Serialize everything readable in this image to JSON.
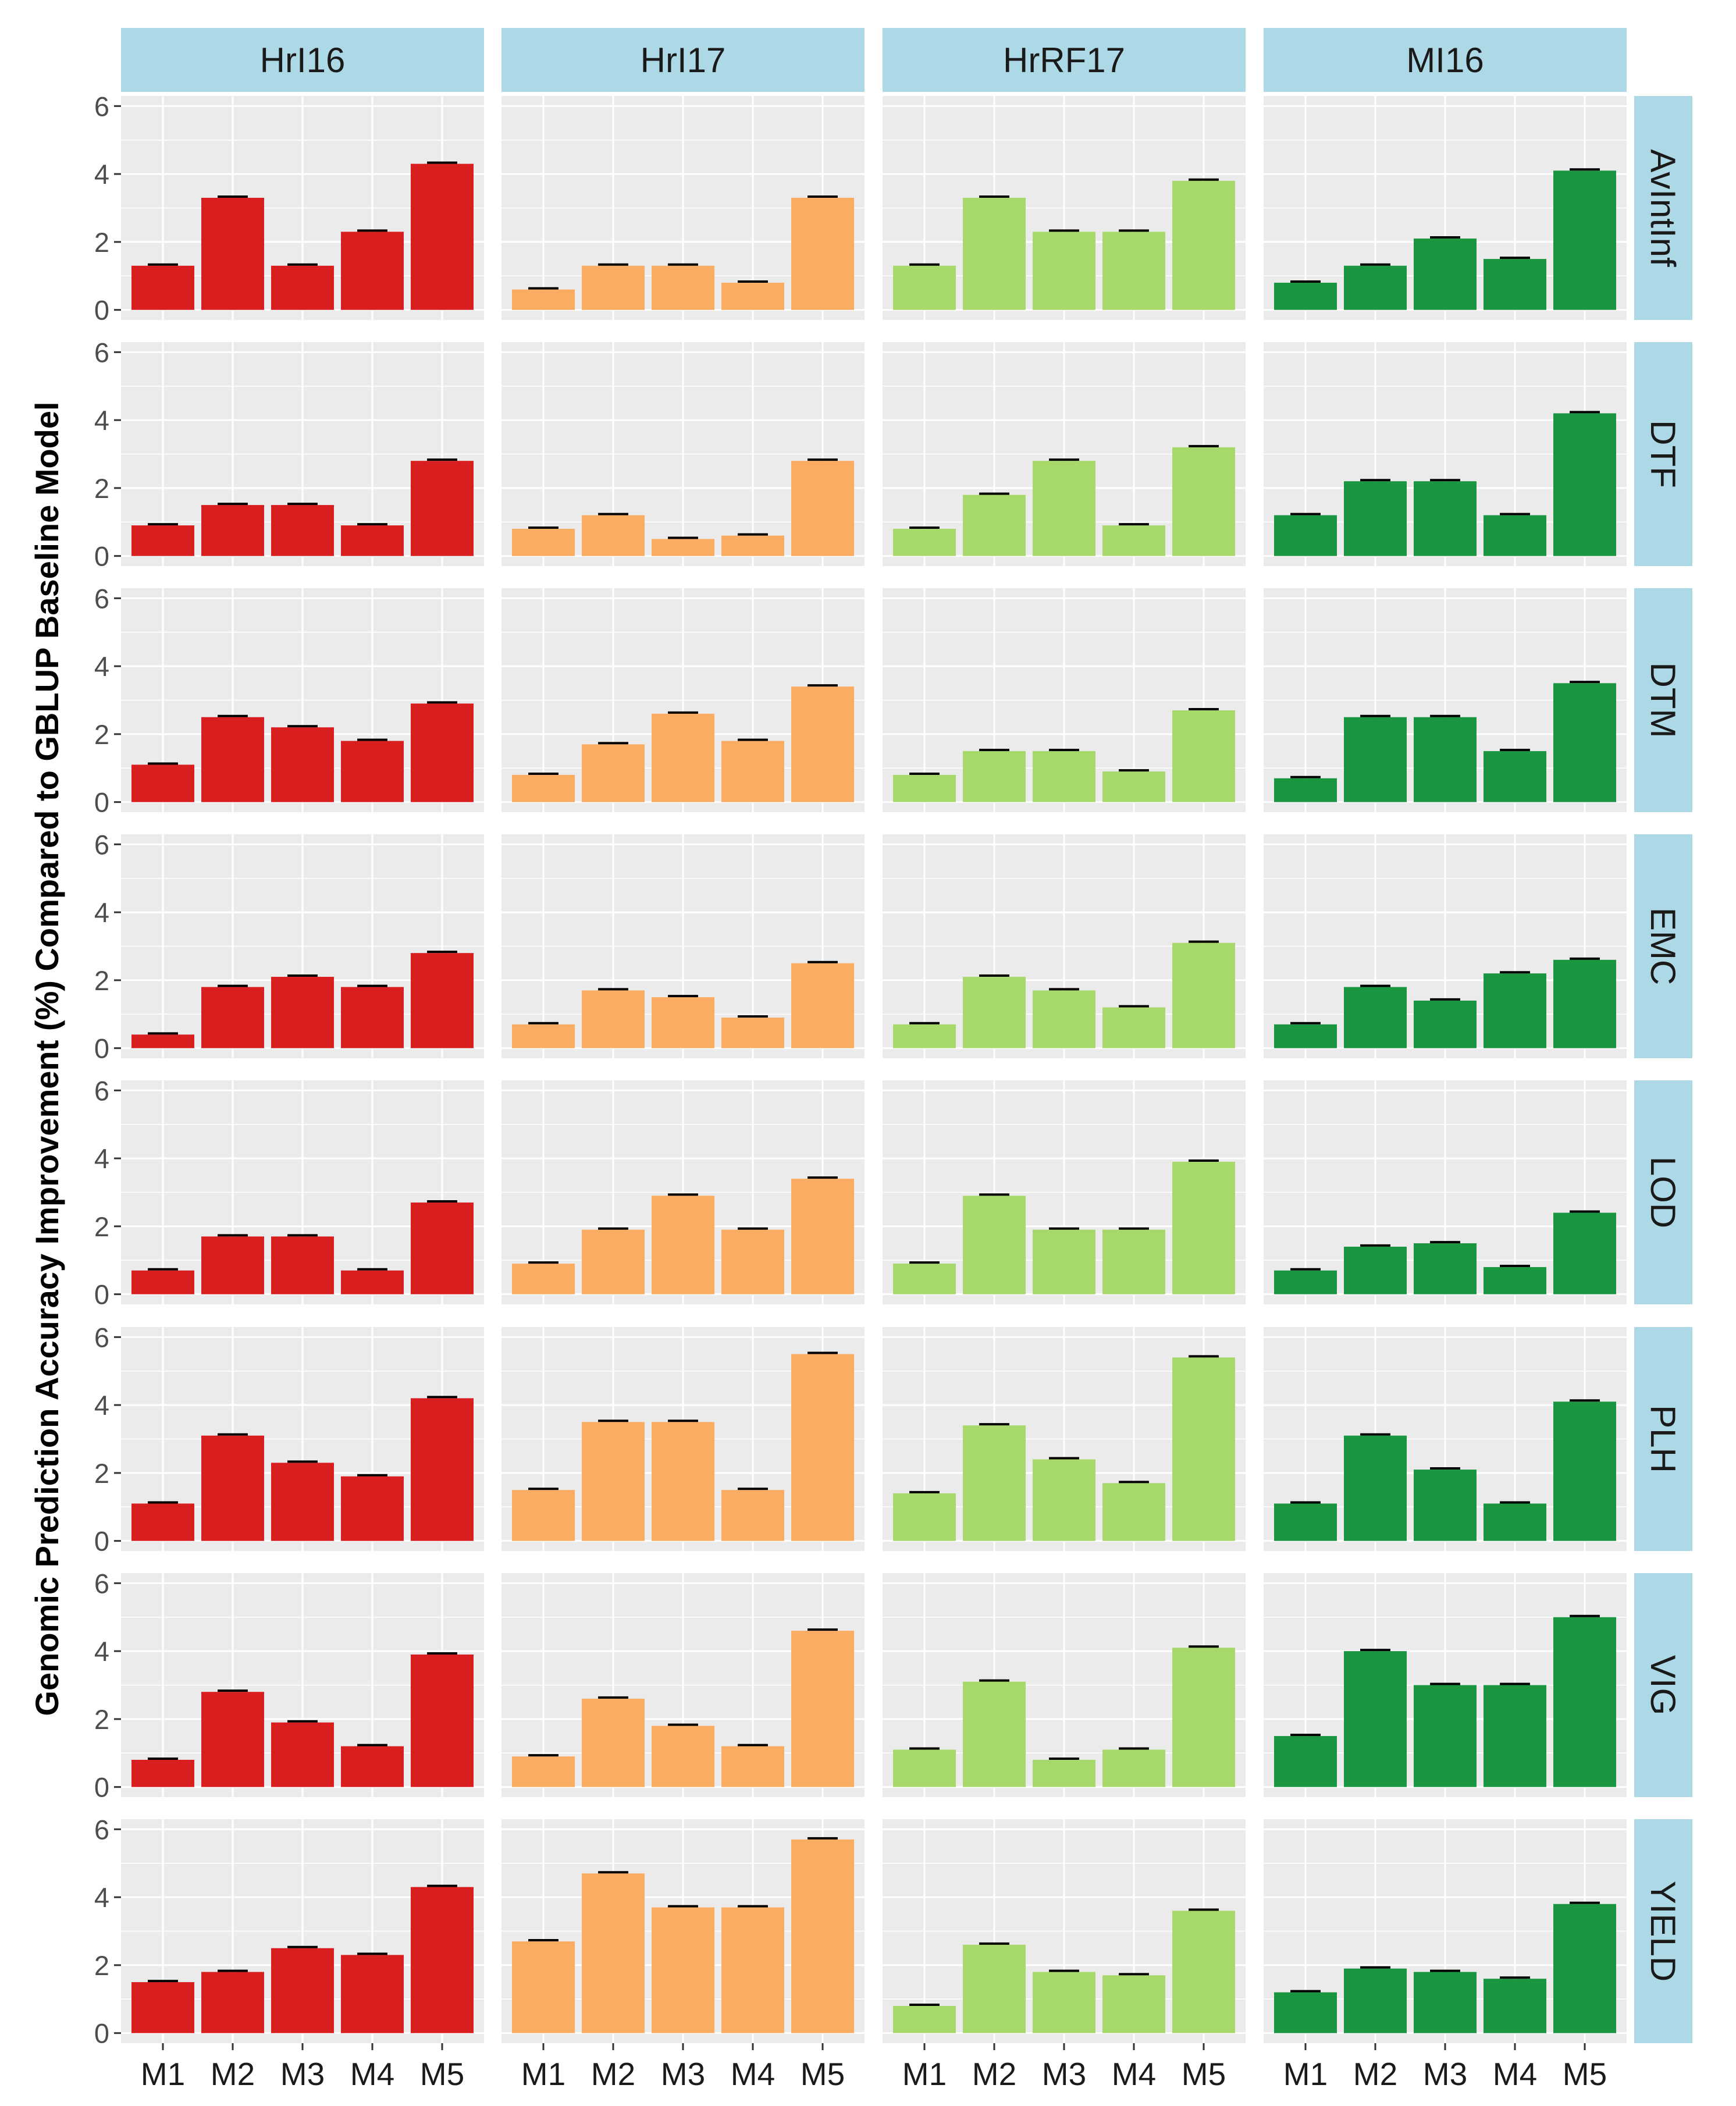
{
  "chart_data": {
    "type": "bar",
    "title": "",
    "xlabel": "",
    "ylabel": "Genomic Prediction Accuracy Improvement (%) Compared to GBLUP Baseline Model",
    "ylim": [
      0,
      6
    ],
    "yticks": [
      0,
      2,
      4,
      6
    ],
    "grid": true,
    "legend": "none",
    "categories": [
      "M1",
      "M2",
      "M3",
      "M4",
      "M5"
    ],
    "environments": [
      {
        "name": "HrI16",
        "color": "#d81e1e"
      },
      {
        "name": "HrI17",
        "color": "#fbac63"
      },
      {
        "name": "HrRF17",
        "color": "#a6d96a"
      },
      {
        "name": "MI16",
        "color": "#1a9641"
      }
    ],
    "traits": [
      {
        "name": "AvIntInf",
        "values": {
          "HrI16": [
            1.3,
            3.3,
            1.3,
            2.3,
            4.3
          ],
          "HrI17": [
            0.6,
            1.3,
            1.3,
            0.8,
            3.3
          ],
          "HrRF17": [
            1.3,
            3.3,
            2.3,
            2.3,
            3.8
          ],
          "MI16": [
            0.8,
            1.3,
            2.1,
            1.5,
            4.1
          ]
        }
      },
      {
        "name": "DTF",
        "values": {
          "HrI16": [
            0.9,
            1.5,
            1.5,
            0.9,
            2.8
          ],
          "HrI17": [
            0.8,
            1.2,
            0.5,
            0.6,
            2.8
          ],
          "HrRF17": [
            0.8,
            1.8,
            2.8,
            0.9,
            3.2
          ],
          "MI16": [
            1.2,
            2.2,
            2.2,
            1.2,
            4.2
          ]
        }
      },
      {
        "name": "DTM",
        "values": {
          "HrI16": [
            1.1,
            2.5,
            2.2,
            1.8,
            2.9
          ],
          "HrI17": [
            0.8,
            1.7,
            2.6,
            1.8,
            3.4
          ],
          "HrRF17": [
            0.8,
            1.5,
            1.5,
            0.9,
            2.7
          ],
          "MI16": [
            0.7,
            2.5,
            2.5,
            1.5,
            3.5
          ]
        }
      },
      {
        "name": "EMC",
        "values": {
          "HrI16": [
            0.4,
            1.8,
            2.1,
            1.8,
            2.8
          ],
          "HrI17": [
            0.7,
            1.7,
            1.5,
            0.9,
            2.5
          ],
          "HrRF17": [
            0.7,
            2.1,
            1.7,
            1.2,
            3.1
          ],
          "MI16": [
            0.7,
            1.8,
            1.4,
            2.2,
            2.6
          ]
        }
      },
      {
        "name": "LOD",
        "values": {
          "HrI16": [
            0.7,
            1.7,
            1.7,
            0.7,
            2.7
          ],
          "HrI17": [
            0.9,
            1.9,
            2.9,
            1.9,
            3.4
          ],
          "HrRF17": [
            0.9,
            2.9,
            1.9,
            1.9,
            3.9
          ],
          "MI16": [
            0.7,
            1.4,
            1.5,
            0.8,
            2.4
          ]
        }
      },
      {
        "name": "PLH",
        "values": {
          "HrI16": [
            1.1,
            3.1,
            2.3,
            1.9,
            4.2
          ],
          "HrI17": [
            1.5,
            3.5,
            3.5,
            1.5,
            5.5
          ],
          "HrRF17": [
            1.4,
            3.4,
            2.4,
            1.7,
            5.4
          ],
          "MI16": [
            1.1,
            3.1,
            2.1,
            1.1,
            4.1
          ]
        }
      },
      {
        "name": "VIG",
        "values": {
          "HrI16": [
            0.8,
            2.8,
            1.9,
            1.2,
            3.9
          ],
          "HrI17": [
            0.9,
            2.6,
            1.8,
            1.2,
            4.6
          ],
          "HrRF17": [
            1.1,
            3.1,
            0.8,
            1.1,
            4.1
          ],
          "MI16": [
            1.5,
            4.0,
            3.0,
            3.0,
            5.0
          ]
        }
      },
      {
        "name": "YIELD",
        "values": {
          "HrI16": [
            1.5,
            1.8,
            2.5,
            2.3,
            4.3
          ],
          "HrI17": [
            2.7,
            4.7,
            3.7,
            3.7,
            5.7
          ],
          "HrRF17": [
            0.8,
            2.6,
            1.8,
            1.7,
            3.6
          ],
          "MI16": [
            1.2,
            1.9,
            1.8,
            1.6,
            3.8
          ]
        }
      }
    ]
  }
}
